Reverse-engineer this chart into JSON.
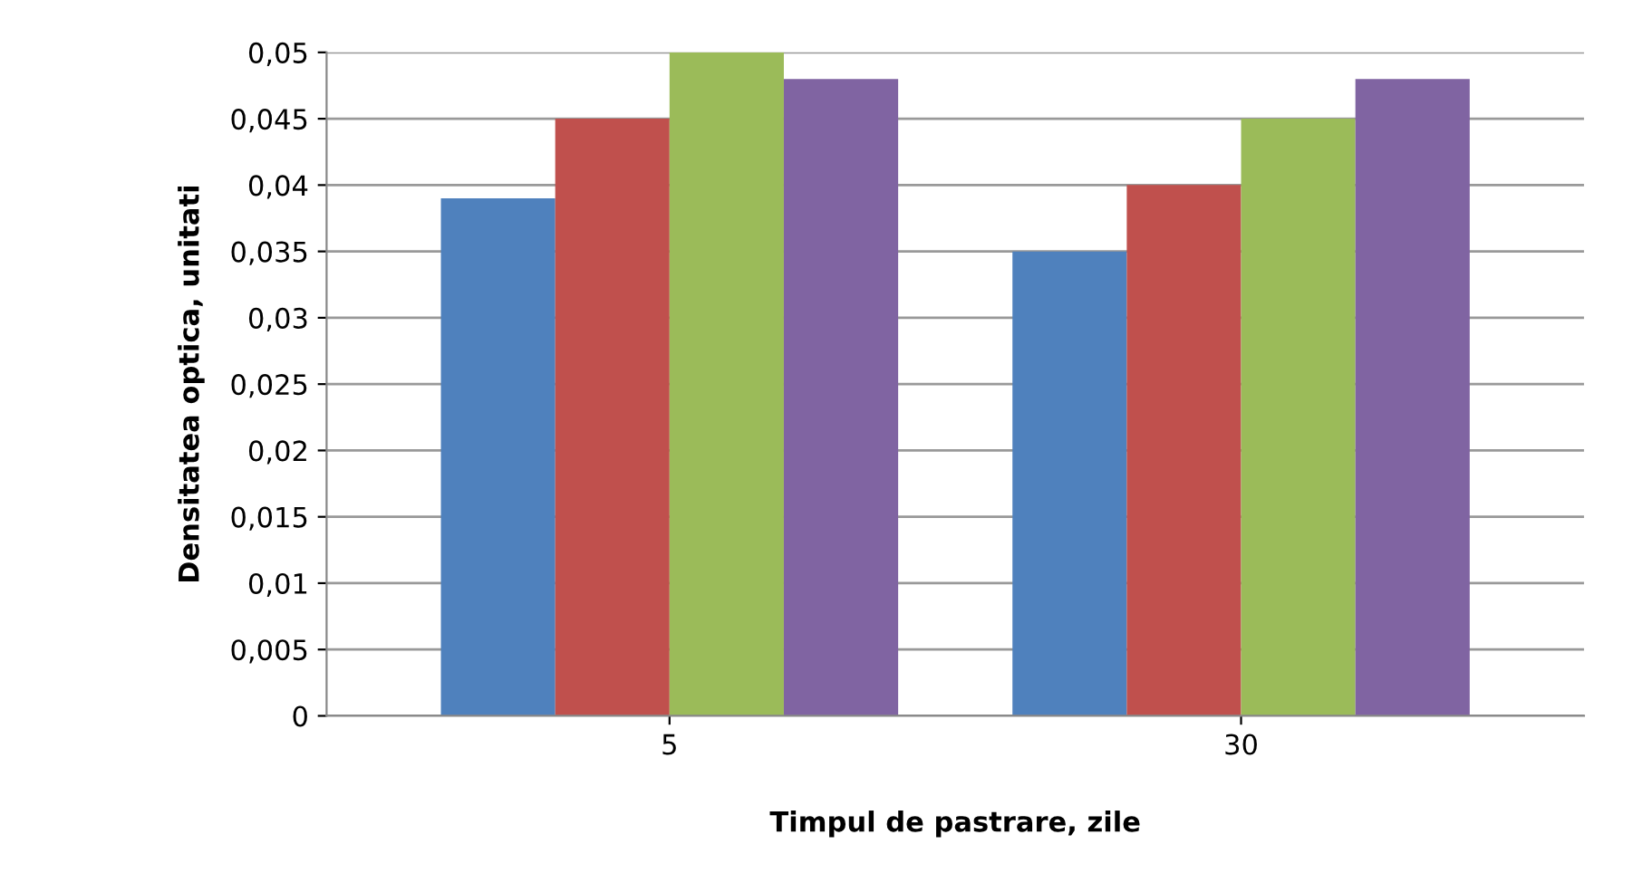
{
  "chart_data": {
    "type": "bar",
    "xlabel": "Timpul de pastrare, zile",
    "ylabel": "Densitatea optica, unitati",
    "categories": [
      "5",
      "30"
    ],
    "series": [
      {
        "color": "#4f81bd",
        "values": [
          0.039,
          0.035
        ]
      },
      {
        "color": "#c0504d",
        "values": [
          0.045,
          0.04
        ]
      },
      {
        "color": "#9bbb59",
        "values": [
          0.05,
          0.045
        ]
      },
      {
        "color": "#8064a2",
        "values": [
          0.048,
          0.048
        ]
      }
    ],
    "ylim": [
      0,
      0.05
    ],
    "yticks": [
      0,
      {
        "value": 0.005,
        "label": "0,005"
      },
      {
        "value": 0.01,
        "label": "0,01"
      },
      {
        "value": 0.015,
        "label": "0,015"
      },
      {
        "value": 0.02,
        "label": "0,02"
      },
      {
        "value": 0.025,
        "label": "0,025"
      },
      {
        "value": 0.03,
        "label": "0,03"
      },
      {
        "value": 0.035,
        "label": "0,035"
      },
      {
        "value": 0.04,
        "label": "0,04"
      },
      {
        "value": 0.045,
        "label": "0,045"
      },
      {
        "value": 0.05,
        "label": "0,05"
      }
    ],
    "grid": "y"
  }
}
